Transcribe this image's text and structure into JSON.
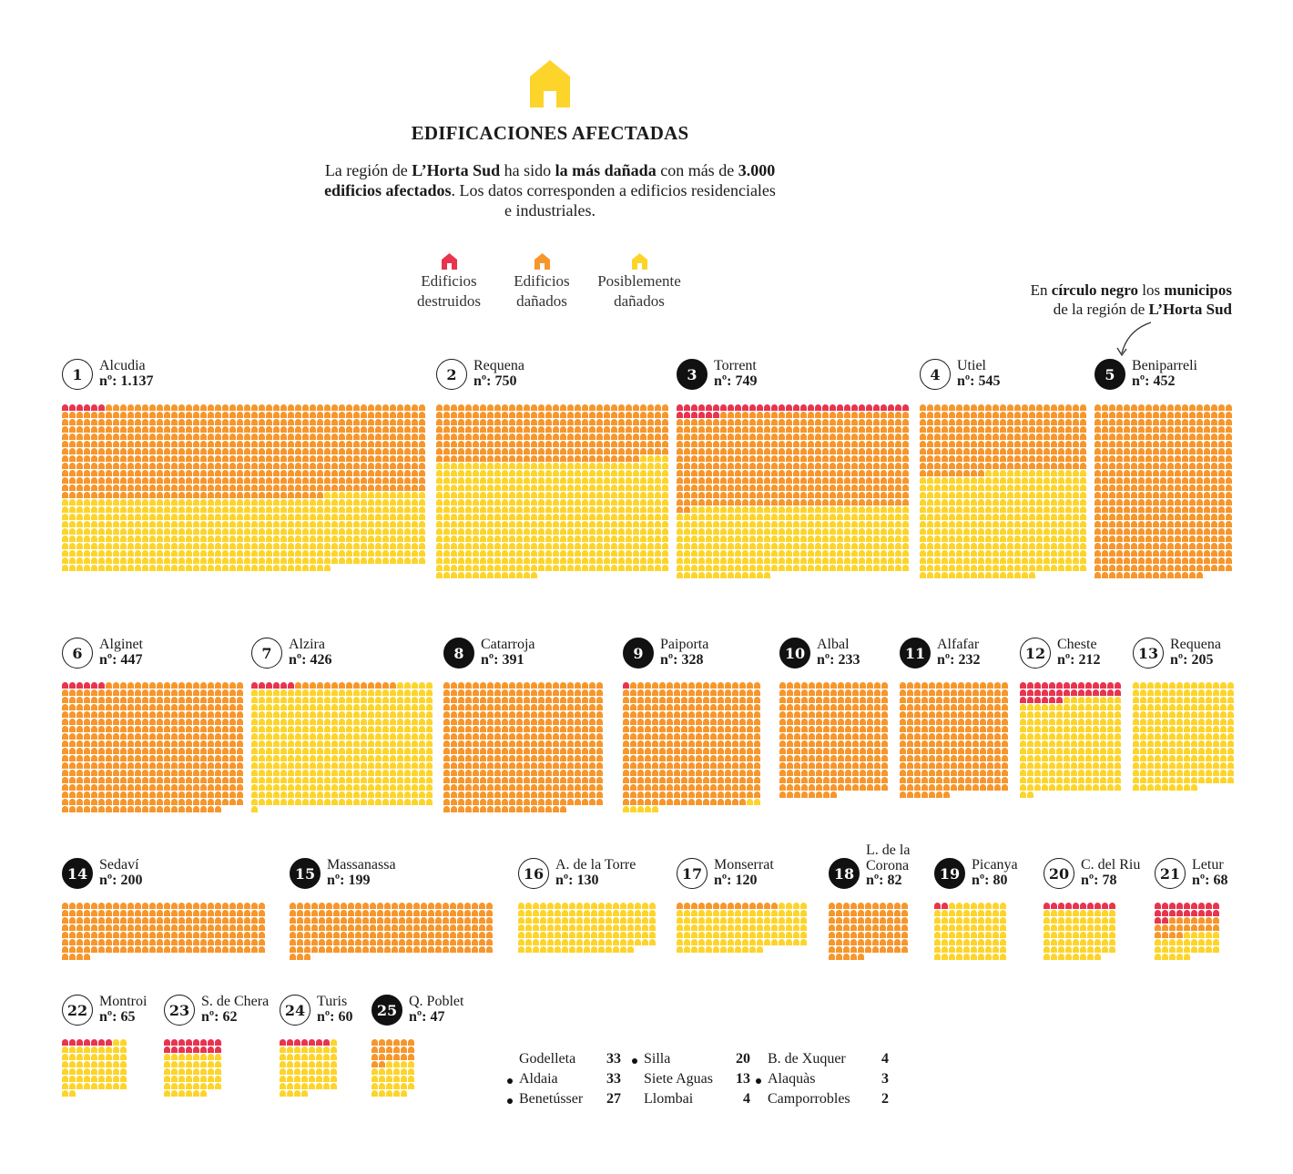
{
  "title": "EDIFICACIONES AFECTADAS",
  "intro": {
    "p1": "La región de ",
    "b1": "L’Horta Sud",
    "p2": " ha sido ",
    "b2": "la más dañada",
    "p3": " con más de ",
    "b3": "3.000 edificios afectados",
    "p4": ". Los datos corresponden a edificios residenciales e industriales."
  },
  "colors": {
    "destroyed": "#e8344f",
    "damaged": "#f7962b",
    "possibly": "#fdd42a",
    "badge_dark": "#111111"
  },
  "legend": [
    {
      "label_line1": "Edificios",
      "label_line2": "destruidos",
      "color_key": "destroyed",
      "icon": "house-icon"
    },
    {
      "label_line1": "Edificios",
      "label_line2": "dañados",
      "color_key": "damaged",
      "icon": "house-icon"
    },
    {
      "label_line1": "Posiblemente",
      "label_line2": "dañados",
      "color_key": "possibly",
      "icon": "house-icon"
    }
  ],
  "note": {
    "t1": "En ",
    "b1": "círculo negro",
    "t2": " los ",
    "b2": "municipos",
    "t3": "de la región de ",
    "b3": "L’Horta Sud"
  },
  "chart_data": {
    "type": "waffle",
    "unit": "one icon = one building",
    "count_prefix": "nº:",
    "municipalities": [
      {
        "rank": "1",
        "name": "Alcudia",
        "total": 1137,
        "count_label": "1.137",
        "horta_sud": false,
        "destroyed": 6,
        "damaged": 630,
        "possibly": 501
      },
      {
        "rank": "2",
        "name": "Requena",
        "total": 750,
        "count_label": "750",
        "horta_sud": false,
        "destroyed": 0,
        "damaged": 252,
        "possibly": 498
      },
      {
        "rank": "3",
        "name": "Torrent",
        "total": 749,
        "count_label": "749",
        "horta_sud": true,
        "destroyed": 38,
        "damaged": 412,
        "possibly": 299
      },
      {
        "rank": "4",
        "name": "Utiel",
        "total": 545,
        "count_label": "545",
        "horta_sud": false,
        "destroyed": 0,
        "damaged": 216,
        "possibly": 329
      },
      {
        "rank": "5",
        "name": "Beniparreli",
        "total": 452,
        "count_label": "452",
        "horta_sud": true,
        "destroyed": 0,
        "damaged": 452,
        "possibly": 0
      },
      {
        "rank": "6",
        "name": "Alginet",
        "total": 447,
        "count_label": "447",
        "horta_sud": false,
        "destroyed": 6,
        "damaged": 441,
        "possibly": 0
      },
      {
        "rank": "7",
        "name": "Alzira",
        "total": 426,
        "count_label": "426",
        "horta_sud": false,
        "destroyed": 6,
        "damaged": 14,
        "possibly": 406
      },
      {
        "rank": "8",
        "name": "Catarroja",
        "total": 391,
        "count_label": "391",
        "horta_sud": true,
        "destroyed": 0,
        "damaged": 391,
        "possibly": 0
      },
      {
        "rank": "9",
        "name": "Paiporta",
        "total": 328,
        "count_label": "328",
        "horta_sud": true,
        "destroyed": 1,
        "damaged": 320,
        "possibly": 7
      },
      {
        "rank": "10",
        "name": "Albal",
        "total": 233,
        "count_label": "233",
        "horta_sud": true,
        "destroyed": 0,
        "damaged": 233,
        "possibly": 0
      },
      {
        "rank": "11",
        "name": "Alfafar",
        "total": 232,
        "count_label": "232",
        "horta_sud": true,
        "destroyed": 0,
        "damaged": 232,
        "possibly": 0
      },
      {
        "rank": "12",
        "name": "Cheste",
        "total": 212,
        "count_label": "212",
        "horta_sud": false,
        "destroyed": 34,
        "damaged": 0,
        "possibly": 178
      },
      {
        "rank": "13",
        "name": "Requena",
        "total": 205,
        "count_label": "205",
        "horta_sud": false,
        "destroyed": 0,
        "damaged": 0,
        "possibly": 205
      },
      {
        "rank": "14",
        "name": "Sedaví",
        "total": 200,
        "count_label": "200",
        "horta_sud": true,
        "destroyed": 0,
        "damaged": 200,
        "possibly": 0
      },
      {
        "rank": "15",
        "name": "Massanassa",
        "total": 199,
        "count_label": "199",
        "horta_sud": true,
        "destroyed": 0,
        "damaged": 199,
        "possibly": 0
      },
      {
        "rank": "16",
        "name": "A. de la Torre",
        "total": 130,
        "count_label": "130",
        "horta_sud": false,
        "destroyed": 0,
        "damaged": 0,
        "possibly": 130
      },
      {
        "rank": "17",
        "name": "Monserrat",
        "total": 120,
        "count_label": "120",
        "horta_sud": false,
        "destroyed": 0,
        "damaged": 14,
        "possibly": 106
      },
      {
        "rank": "18",
        "name": "L. de la Corona",
        "name_line1": "L. de la",
        "name_line2": "Corona",
        "total": 82,
        "count_label": "82",
        "horta_sud": true,
        "destroyed": 0,
        "damaged": 82,
        "possibly": 0
      },
      {
        "rank": "19",
        "name": "Picanya",
        "total": 80,
        "count_label": "80",
        "horta_sud": true,
        "destroyed": 2,
        "damaged": 0,
        "possibly": 78
      },
      {
        "rank": "20",
        "name": "C. del Riu",
        "total": 78,
        "count_label": "78",
        "horta_sud": false,
        "destroyed": 10,
        "damaged": 0,
        "possibly": 68
      },
      {
        "rank": "21",
        "name": "Letur",
        "total": 68,
        "count_label": "68",
        "horta_sud": false,
        "destroyed": 20,
        "damaged": 20,
        "possibly": 28
      },
      {
        "rank": "22",
        "name": "Montroi",
        "total": 65,
        "count_label": "65",
        "horta_sud": false,
        "destroyed": 7,
        "damaged": 0,
        "possibly": 58
      },
      {
        "rank": "23",
        "name": "S. de Chera",
        "total": 62,
        "count_label": "62",
        "horta_sud": false,
        "destroyed": 16,
        "damaged": 0,
        "possibly": 46
      },
      {
        "rank": "24",
        "name": "Turis",
        "total": 60,
        "count_label": "60",
        "horta_sud": false,
        "destroyed": 7,
        "damaged": 0,
        "possibly": 53
      },
      {
        "rank": "25",
        "name": "Q. Poblet",
        "total": 47,
        "count_label": "47",
        "horta_sud": true,
        "destroyed": 0,
        "damaged": 20,
        "possibly": 27
      }
    ],
    "minor_municipalities": [
      {
        "name": "Godelleta",
        "value": "33",
        "horta_sud": false
      },
      {
        "name": "Aldaia",
        "value": "33",
        "horta_sud": true
      },
      {
        "name": "Benetússer",
        "value": "27",
        "horta_sud": true
      },
      {
        "name": "Silla",
        "value": "20",
        "horta_sud": true
      },
      {
        "name": "Siete Aguas",
        "value": "13",
        "horta_sud": false
      },
      {
        "name": "Llombai",
        "value": "4",
        "horta_sud": false
      },
      {
        "name": "B. de Xuquer",
        "value": "4",
        "horta_sud": false
      },
      {
        "name": "Alaquàs",
        "value": "3",
        "horta_sud": true
      },
      {
        "name": "Camporrobles",
        "value": "2",
        "horta_sud": false
      }
    ]
  }
}
